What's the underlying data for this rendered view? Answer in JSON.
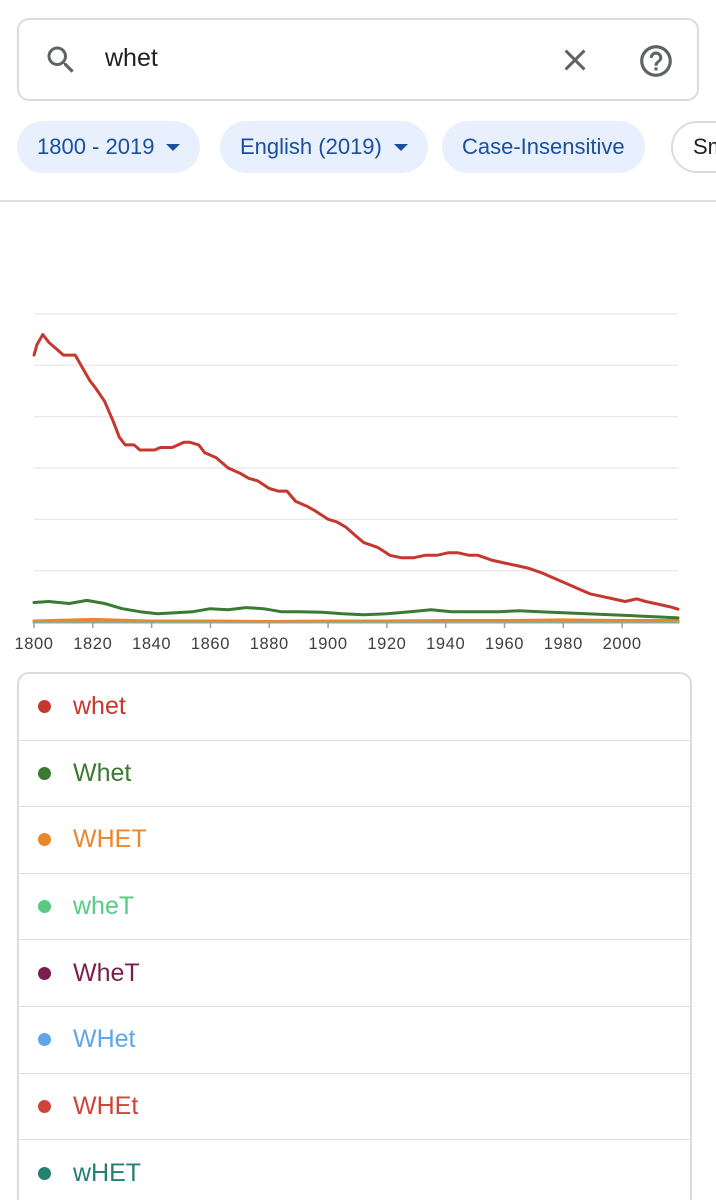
{
  "search": {
    "query": "whet"
  },
  "filters": {
    "chips": [
      {
        "label": "1800 - 2019",
        "dropdown": true
      },
      {
        "label": "English (2019)",
        "dropdown": true
      },
      {
        "label": "Case-Insensitive",
        "dropdown": false
      },
      {
        "label": "Smoothing",
        "dropdown": false
      }
    ]
  },
  "chart_data": {
    "type": "line",
    "title": "",
    "xlabel": "",
    "ylabel": "",
    "xlim": [
      1800,
      2019
    ],
    "ylim": [
      0,
      6
    ],
    "x_ticks": [
      "1800",
      "1820",
      "1840",
      "1860",
      "1880",
      "1900",
      "1920",
      "1940",
      "1960",
      "1980",
      "2000"
    ],
    "grid": true,
    "series": [
      {
        "name": "whet",
        "color": "#c5382e",
        "x": [
          1800,
          1801,
          1803,
          1805,
          1808,
          1810,
          1814,
          1817,
          1819,
          1821,
          1824,
          1827,
          1829,
          1831,
          1834,
          1836,
          1839,
          1841,
          1843,
          1847,
          1851,
          1853,
          1856,
          1858,
          1862,
          1864,
          1866,
          1870,
          1873,
          1876,
          1880,
          1883,
          1886,
          1889,
          1893,
          1896,
          1900,
          1903,
          1906,
          1909,
          1912,
          1917,
          1921,
          1925,
          1929,
          1933,
          1937,
          1941,
          1944,
          1948,
          1951,
          1956,
          1960,
          1964,
          1968,
          1973,
          1977,
          1981,
          1985,
          1989,
          1993,
          1997,
          2001,
          2005,
          2008,
          2012,
          2016,
          2019
        ],
        "values": [
          5.2,
          5.4,
          5.6,
          5.45,
          5.3,
          5.2,
          5.2,
          4.9,
          4.7,
          4.55,
          4.3,
          3.9,
          3.6,
          3.45,
          3.45,
          3.35,
          3.35,
          3.35,
          3.4,
          3.4,
          3.5,
          3.5,
          3.45,
          3.3,
          3.2,
          3.1,
          3.0,
          2.9,
          2.8,
          2.75,
          2.6,
          2.55,
          2.55,
          2.35,
          2.25,
          2.15,
          2.0,
          1.95,
          1.85,
          1.7,
          1.55,
          1.45,
          1.3,
          1.25,
          1.25,
          1.3,
          1.3,
          1.35,
          1.35,
          1.3,
          1.3,
          1.2,
          1.15,
          1.1,
          1.05,
          0.95,
          0.85,
          0.75,
          0.65,
          0.55,
          0.5,
          0.45,
          0.4,
          0.45,
          0.4,
          0.35,
          0.3,
          0.25
        ]
      },
      {
        "name": "Whet",
        "color": "#3a7a32",
        "x": [
          1800,
          1805,
          1812,
          1818,
          1824,
          1830,
          1836,
          1842,
          1848,
          1854,
          1860,
          1866,
          1872,
          1878,
          1884,
          1890,
          1898,
          1905,
          1912,
          1920,
          1928,
          1935,
          1942,
          1950,
          1958,
          1965,
          1972,
          1980,
          1988,
          1996,
          2004,
          2012,
          2019
        ],
        "values": [
          0.38,
          0.4,
          0.36,
          0.42,
          0.36,
          0.26,
          0.2,
          0.16,
          0.18,
          0.2,
          0.26,
          0.24,
          0.28,
          0.26,
          0.2,
          0.2,
          0.19,
          0.16,
          0.14,
          0.16,
          0.2,
          0.24,
          0.2,
          0.2,
          0.2,
          0.22,
          0.2,
          0.18,
          0.16,
          0.14,
          0.12,
          0.1,
          0.08
        ]
      },
      {
        "name": "WHET",
        "color": "#e8872c",
        "x": [
          1800,
          1820,
          1840,
          1860,
          1880,
          1900,
          1920,
          1940,
          1960,
          1980,
          2000,
          2019
        ],
        "values": [
          0.02,
          0.05,
          0.02,
          0.02,
          0.01,
          0.02,
          0.02,
          0.03,
          0.03,
          0.04,
          0.03,
          0.03
        ]
      },
      {
        "name": "wheT",
        "color": "#57cb84",
        "x": [
          1800,
          2019
        ],
        "values": [
          0.0,
          0.0
        ]
      },
      {
        "name": "WheT",
        "color": "#7b1e4e",
        "x": [
          1800,
          2019
        ],
        "values": [
          0.0,
          0.0
        ]
      },
      {
        "name": "WHet",
        "color": "#5ea6e8",
        "x": [
          1800,
          2019
        ],
        "values": [
          0.0,
          0.0
        ]
      },
      {
        "name": "WHEt",
        "color": "#d0433a",
        "x": [
          1800,
          2019
        ],
        "values": [
          0.0,
          0.0
        ]
      },
      {
        "name": "wHET",
        "color": "#24806f",
        "x": [
          1800,
          2019
        ],
        "values": [
          0.01,
          0.01
        ]
      }
    ]
  }
}
